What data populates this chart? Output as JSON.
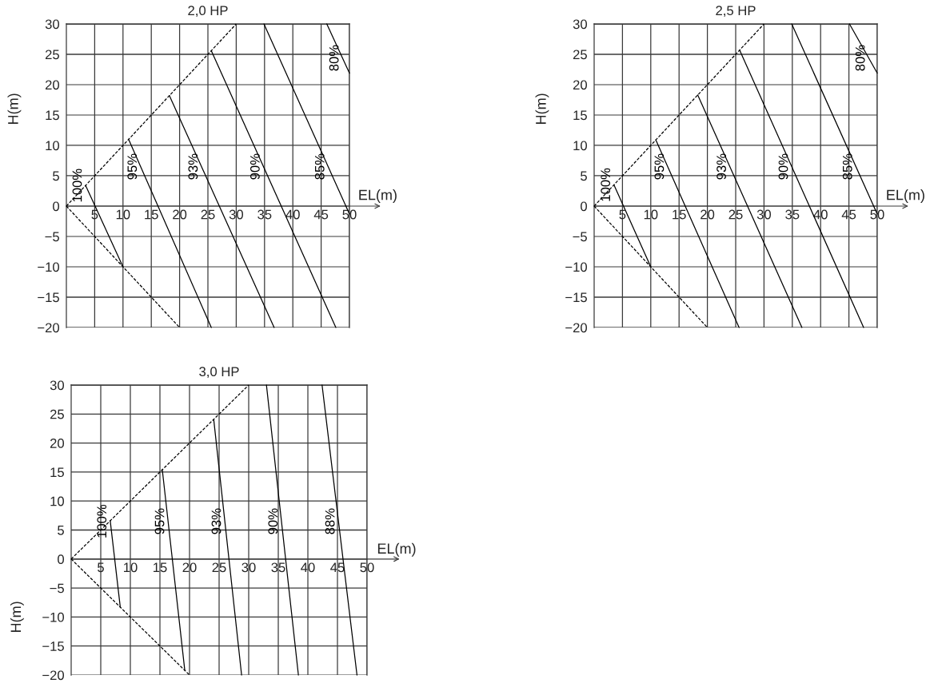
{
  "chart_data": [
    {
      "type": "line",
      "title": "2,0 HP",
      "xlabel": "EL(m)",
      "ylabel": "H(m)",
      "xlim": [
        0,
        50
      ],
      "ylim": [
        -20,
        30
      ],
      "xticks": [
        5,
        10,
        15,
        20,
        25,
        30,
        35,
        40,
        45,
        50
      ],
      "yticks": [
        -20,
        -15,
        -10,
        -5,
        0,
        5,
        10,
        15,
        20,
        25,
        30
      ],
      "grid": true,
      "series": [
        {
          "color": "#000000",
          "line_style": "dashed",
          "x": [
            0,
            30
          ],
          "values": [
            0,
            30
          ]
        },
        {
          "color": "#000000",
          "line_style": "dashed",
          "x": [
            0,
            20
          ],
          "values": [
            0,
            -20
          ]
        },
        {
          "name": "100%",
          "color": "#000000",
          "line_style": "solid",
          "x": [
            3.4,
            10
          ],
          "values": [
            3.4,
            -10
          ]
        },
        {
          "name": "95%",
          "color": "#000000",
          "line_style": "solid",
          "x": [
            11,
            25.6
          ],
          "values": [
            11,
            -20
          ]
        },
        {
          "name": "93%",
          "color": "#000000",
          "line_style": "solid",
          "x": [
            18.2,
            36.7
          ],
          "values": [
            18.2,
            -20
          ]
        },
        {
          "name": "90%",
          "color": "#000000",
          "line_style": "solid",
          "x": [
            25.6,
            47.6
          ],
          "values": [
            25.6,
            -20
          ]
        },
        {
          "name": "85%",
          "color": "#000000",
          "line_style": "solid",
          "x": [
            34.9,
            50
          ],
          "values": [
            30,
            -1.3
          ]
        },
        {
          "name": "80%",
          "color": "#000000",
          "line_style": "solid",
          "x": [
            46,
            50
          ],
          "values": [
            30,
            21.9
          ]
        }
      ]
    },
    {
      "type": "line",
      "title": "2,5 HP",
      "xlabel": "EL(m)",
      "ylabel": "H(m)",
      "xlim": [
        0,
        50
      ],
      "ylim": [
        -20,
        30
      ],
      "xticks": [
        5,
        10,
        15,
        20,
        25,
        30,
        35,
        40,
        45,
        50
      ],
      "yticks": [
        -20,
        -15,
        -10,
        -5,
        0,
        5,
        10,
        15,
        20,
        25,
        30
      ],
      "grid": true,
      "series": [
        {
          "color": "#000000",
          "line_style": "dashed",
          "x": [
            0,
            30
          ],
          "values": [
            0,
            30
          ]
        },
        {
          "color": "#000000",
          "line_style": "dashed",
          "x": [
            0,
            20
          ],
          "values": [
            0,
            -20
          ]
        },
        {
          "name": "100%",
          "color": "#000000",
          "line_style": "solid",
          "x": [
            3.5,
            10
          ],
          "values": [
            3.5,
            -10
          ]
        },
        {
          "name": "95%",
          "color": "#000000",
          "line_style": "solid",
          "x": [
            10.9,
            25.6
          ],
          "values": [
            10.9,
            -20
          ]
        },
        {
          "name": "93%",
          "color": "#000000",
          "line_style": "solid",
          "x": [
            18.3,
            36.7
          ],
          "values": [
            18.3,
            -20
          ]
        },
        {
          "name": "90%",
          "color": "#000000",
          "line_style": "solid",
          "x": [
            25.7,
            47.6
          ],
          "values": [
            25.7,
            -20
          ]
        },
        {
          "name": "85%",
          "color": "#000000",
          "line_style": "solid",
          "x": [
            34.9,
            50
          ],
          "values": [
            30,
            -1.3
          ]
        },
        {
          "name": "80%",
          "color": "#000000",
          "line_style": "solid",
          "x": [
            45.1,
            50
          ],
          "values": [
            30,
            21.9
          ]
        }
      ]
    },
    {
      "type": "line",
      "title": "3,0 HP",
      "xlabel": "EL(m)",
      "ylabel": "H(m)",
      "xlim": [
        0,
        50
      ],
      "ylim": [
        -20,
        30
      ],
      "xticks": [
        5,
        10,
        15,
        20,
        25,
        30,
        35,
        40,
        45,
        50
      ],
      "yticks": [
        -20,
        -15,
        -10,
        -5,
        0,
        5,
        10,
        15,
        20,
        25,
        30
      ],
      "grid": true,
      "series": [
        {
          "color": "#000000",
          "line_style": "dashed",
          "x": [
            0,
            30
          ],
          "values": [
            0,
            30
          ]
        },
        {
          "color": "#000000",
          "line_style": "dashed",
          "x": [
            0,
            20
          ],
          "values": [
            0,
            -20
          ]
        },
        {
          "name": "100%",
          "color": "#000000",
          "line_style": "solid",
          "x": [
            6.6,
            8.3
          ],
          "values": [
            6.6,
            -8.3
          ]
        },
        {
          "name": "95%",
          "color": "#000000",
          "line_style": "solid",
          "x": [
            15.4,
            19.2
          ],
          "values": [
            15.4,
            -19.2
          ]
        },
        {
          "name": "93%",
          "color": "#000000",
          "line_style": "solid",
          "x": [
            24.1,
            28.8
          ],
          "values": [
            24,
            -20
          ]
        },
        {
          "name": "90%",
          "color": "#000000",
          "line_style": "solid",
          "x": [
            33,
            38.4
          ],
          "values": [
            30,
            -20
          ]
        },
        {
          "name": "88%",
          "color": "#000000",
          "line_style": "solid",
          "x": [
            42.4,
            48.3
          ],
          "values": [
            30,
            -20
          ]
        }
      ]
    }
  ]
}
